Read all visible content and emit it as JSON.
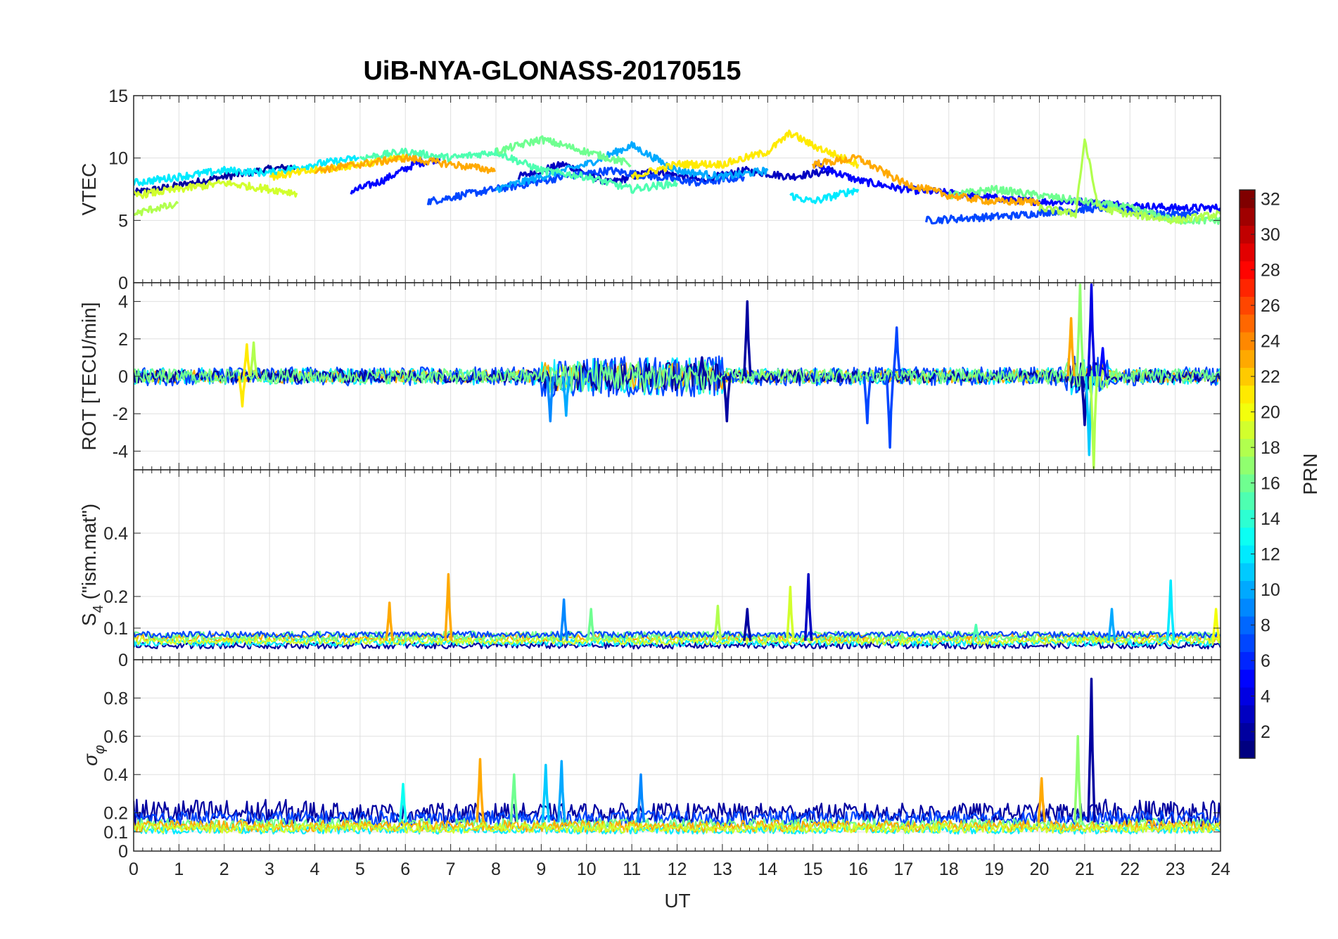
{
  "chart_data": {
    "type": "line",
    "title": "UiB-NYA-GLONASS-20170515",
    "xlabel": "UT",
    "x_ticks": [
      "0",
      "1",
      "2",
      "3",
      "4",
      "5",
      "6",
      "7",
      "8",
      "9",
      "10",
      "11",
      "12",
      "13",
      "14",
      "15",
      "16",
      "17",
      "18",
      "19",
      "20",
      "21",
      "22",
      "23",
      "24"
    ],
    "xlim": [
      0,
      24
    ],
    "grid": true,
    "colorbar": {
      "label": "PRN",
      "colormap": "jet",
      "range": [
        1,
        32
      ],
      "ticks": [
        "2",
        "4",
        "6",
        "8",
        "10",
        "12",
        "14",
        "16",
        "18",
        "20",
        "22",
        "24",
        "26",
        "28",
        "30",
        "32"
      ]
    },
    "panels": [
      {
        "ylabel": "VTEC",
        "ylim": [
          0,
          15
        ],
        "y_ticks": [
          "0",
          "5",
          "10",
          "15"
        ],
        "series": [
          {
            "prn": 2,
            "x": [
              0,
              1,
              2,
              3,
              3.6
            ],
            "y": [
              7.2,
              7.8,
              8.5,
              9.1,
              9.3
            ]
          },
          {
            "prn": 3,
            "x": [
              8.5,
              9.5,
              10.5,
              11.5,
              12.5,
              13.5,
              14.5,
              15.5
            ],
            "y": [
              8.5,
              9.5,
              8.0,
              9.0,
              8.2,
              9.0,
              8.5,
              9.0
            ]
          },
          {
            "prn": 5,
            "x": [
              4.8,
              5.5,
              6.2,
              6.8,
              15,
              16,
              17,
              18,
              19,
              20,
              21,
              22,
              23,
              24
            ],
            "y": [
              7.3,
              8.2,
              9.5,
              10,
              9.5,
              8.2,
              7.5,
              7.2,
              6.8,
              6.5,
              6.5,
              6.2,
              6.0,
              6.0
            ]
          },
          {
            "prn": 7,
            "x": [
              6.5,
              7.5,
              8.5,
              9.5,
              10.5,
              11.5,
              12.5,
              13.5,
              17.5,
              18.5,
              19.5,
              20.5,
              21.5,
              22.5,
              23.5
            ],
            "y": [
              6.5,
              7.2,
              7.8,
              8.5,
              9.0,
              8.5,
              8.0,
              8.5,
              5.0,
              5.2,
              5.4,
              5.8,
              6.0,
              5.5,
              5.5
            ]
          },
          {
            "prn": 10,
            "x": [
              8,
              9,
              10,
              11,
              12,
              13,
              14
            ],
            "y": [
              7.5,
              8.5,
              9.5,
              11,
              9.0,
              8.5,
              9.0
            ]
          },
          {
            "prn": 12,
            "x": [
              0,
              1,
              2,
              3,
              4,
              5,
              14.5,
              15,
              16
            ],
            "y": [
              8.0,
              8.5,
              9.0,
              8.8,
              9.5,
              10.0,
              7.0,
              6.5,
              7.5
            ]
          },
          {
            "prn": 15,
            "x": [
              5,
              6,
              7,
              8,
              9,
              10,
              11,
              12
            ],
            "y": [
              10.0,
              10.5,
              10.0,
              10.5,
              9.0,
              8.5,
              7.5,
              8.0
            ]
          },
          {
            "prn": 16,
            "x": [
              8,
              9,
              10,
              11,
              18,
              19,
              20,
              21,
              22,
              23,
              24
            ],
            "y": [
              10.5,
              11.5,
              10.5,
              9.5,
              7.0,
              7.5,
              7.0,
              6.5,
              6.0,
              5.0,
              5.0
            ]
          },
          {
            "prn": 18,
            "x": [
              0,
              0.5,
              1,
              20,
              20.8,
              21,
              21.3,
              22,
              23,
              24
            ],
            "y": [
              5.5,
              6.0,
              6.2,
              6.0,
              5.5,
              11.5,
              6.0,
              5.5,
              5.0,
              5.5
            ]
          },
          {
            "prn": 19,
            "x": [
              0,
              1,
              2,
              3,
              3.6
            ],
            "y": [
              7.0,
              7.5,
              8.0,
              7.5,
              7.2
            ]
          },
          {
            "prn": 21,
            "x": [
              3,
              4,
              5,
              6,
              11,
              12,
              13,
              14,
              14.5,
              15,
              16
            ],
            "y": [
              8.5,
              9.0,
              9.5,
              10.0,
              8.5,
              9.5,
              9.5,
              10.5,
              12.0,
              11.0,
              9.5
            ]
          },
          {
            "prn": 23,
            "x": [
              4,
              5,
              6,
              7,
              8,
              15,
              16,
              17,
              18,
              19,
              20
            ],
            "y": [
              9.0,
              9.5,
              10.0,
              9.5,
              9.0,
              9.5,
              10.0,
              8.0,
              7.0,
              6.5,
              6.5
            ]
          }
        ]
      },
      {
        "ylabel": "ROT [TECU/min]",
        "ylim": [
          -5,
          5
        ],
        "y_ticks": [
          "-4",
          "-2",
          "0",
          "2",
          "4"
        ],
        "spikes": [
          {
            "prn": 2,
            "x": 13.55,
            "y": 4.0
          },
          {
            "prn": 2,
            "x": 13.1,
            "y": -2.4
          },
          {
            "prn": 2,
            "x": 12.55,
            "y": 1.0
          },
          {
            "prn": 2,
            "x": 21.0,
            "y": -2.6
          },
          {
            "prn": 4,
            "x": 21.15,
            "y": 4.9
          },
          {
            "prn": 5,
            "x": 21.4,
            "y": 1.5
          },
          {
            "prn": 7,
            "x": 16.7,
            "y": -3.8
          },
          {
            "prn": 7,
            "x": 16.85,
            "y": 2.6
          },
          {
            "prn": 7,
            "x": 16.2,
            "y": -2.5
          },
          {
            "prn": 9,
            "x": 9.2,
            "y": -2.4
          },
          {
            "prn": 10,
            "x": 9.55,
            "y": -2.1
          },
          {
            "prn": 11,
            "x": 21.1,
            "y": -4.2
          },
          {
            "prn": 18,
            "x": 21.2,
            "y": -4.9
          },
          {
            "prn": 17,
            "x": 20.9,
            "y": 4.9
          },
          {
            "prn": 23,
            "x": 20.7,
            "y": 3.1
          },
          {
            "prn": 21,
            "x": 2.4,
            "y": -1.6
          },
          {
            "prn": 21,
            "x": 2.5,
            "y": 1.7
          },
          {
            "prn": 18,
            "x": 2.65,
            "y": 1.8
          }
        ]
      },
      {
        "ylabel": "S_4 (\"ism.mat\")",
        "ylabel_main": "S",
        "ylabel_sub": "4",
        "ylabel_rest": " (\"ism.mat\")",
        "ylim": [
          0,
          0.6
        ],
        "y_ticks": [
          "0",
          "0.1",
          "0.2",
          "0.4"
        ],
        "y_tick_values": [
          0,
          0.1,
          0.2,
          0.4
        ],
        "spikes": [
          {
            "prn": 23,
            "x": 6.95,
            "y": 0.27
          },
          {
            "prn": 23,
            "x": 5.65,
            "y": 0.18
          },
          {
            "prn": 3,
            "x": 14.9,
            "y": 0.27
          },
          {
            "prn": 12,
            "x": 22.9,
            "y": 0.25
          },
          {
            "prn": 19,
            "x": 14.5,
            "y": 0.23
          },
          {
            "prn": 18,
            "x": 12.9,
            "y": 0.17
          },
          {
            "prn": 9,
            "x": 9.5,
            "y": 0.19
          },
          {
            "prn": 16,
            "x": 10.1,
            "y": 0.16
          },
          {
            "prn": 2,
            "x": 13.55,
            "y": 0.16
          },
          {
            "prn": 10,
            "x": 21.6,
            "y": 0.16
          },
          {
            "prn": 20,
            "x": 23.9,
            "y": 0.16
          },
          {
            "prn": 15,
            "x": 18.6,
            "y": 0.11
          }
        ]
      },
      {
        "ylabel": "σ_φ",
        "ylabel_main": "σ",
        "ylabel_sub": "φ",
        "ylim": [
          0,
          1
        ],
        "y_ticks": [
          "0",
          "0.1",
          "0.2",
          "0.4",
          "0.6",
          "0.8"
        ],
        "y_tick_values": [
          0,
          0.1,
          0.2,
          0.4,
          0.6,
          0.8
        ],
        "spikes": [
          {
            "prn": 2,
            "x": 21.15,
            "y": 0.9
          },
          {
            "prn": 17,
            "x": 20.85,
            "y": 0.6
          },
          {
            "prn": 23,
            "x": 7.65,
            "y": 0.48
          },
          {
            "prn": 10,
            "x": 9.45,
            "y": 0.47
          },
          {
            "prn": 11,
            "x": 9.1,
            "y": 0.45
          },
          {
            "prn": 16,
            "x": 8.4,
            "y": 0.4
          },
          {
            "prn": 9,
            "x": 11.2,
            "y": 0.4
          },
          {
            "prn": 23,
            "x": 20.05,
            "y": 0.38
          },
          {
            "prn": 13,
            "x": 5.95,
            "y": 0.35
          }
        ]
      }
    ]
  }
}
